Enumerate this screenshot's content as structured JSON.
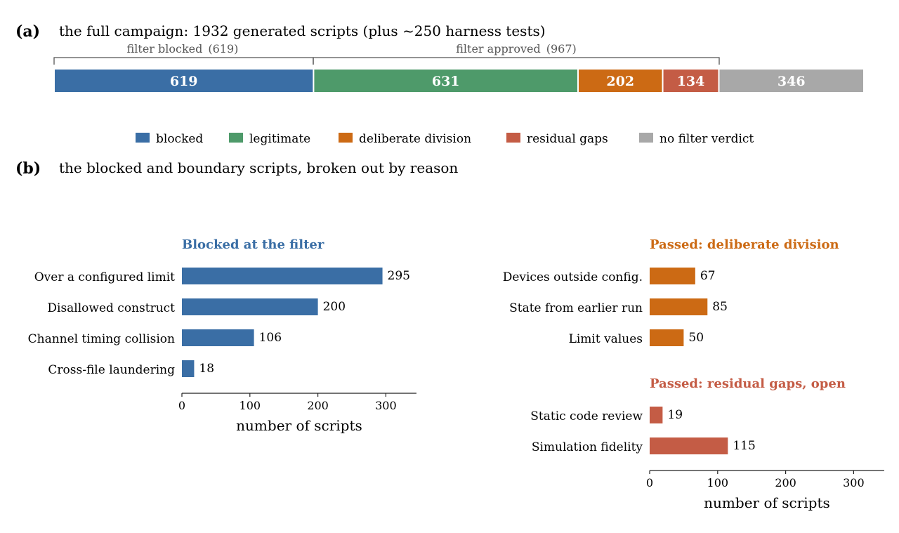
{
  "panel_a": {
    "letter": "(a)",
    "title": "the full campaign: 1932 generated scripts (plus ~250 harness tests)",
    "brackets": [
      {
        "label": "filter blocked",
        "count": "(619)"
      },
      {
        "label": "filter approved",
        "count": "(967)"
      }
    ],
    "legend": [
      {
        "label": "blocked",
        "color": "#3a6ea5"
      },
      {
        "label": "legitimate",
        "color": "#4e9a6a"
      },
      {
        "label": "deliberate division",
        "color": "#cc6a14"
      },
      {
        "label": "residual gaps",
        "color": "#c45c45"
      },
      {
        "label": "no filter verdict",
        "color": "#a8a8a8"
      }
    ]
  },
  "panel_b": {
    "letter": "(b)",
    "title": "the blocked and boundary scripts, broken out by reason"
  },
  "chart_data": [
    {
      "type": "bar",
      "orientation": "horizontal-stacked",
      "categories": [
        "blocked",
        "legitimate",
        "deliberate division",
        "residual gaps",
        "no filter verdict"
      ],
      "values": [
        619,
        631,
        202,
        134,
        346
      ],
      "labels": [
        "619",
        "631",
        "202",
        "134",
        "346"
      ],
      "colors": [
        "#3a6ea5",
        "#4e9a6a",
        "#cc6a14",
        "#c45c45",
        "#a8a8a8"
      ],
      "total": 1932
    },
    {
      "type": "bar",
      "orientation": "horizontal",
      "title": "Blocked at the filter",
      "title_color": "#3a6ea5",
      "bar_color": "#3a6ea5",
      "categories": [
        "Over a configured limit",
        "Disallowed construct",
        "Channel timing collision",
        "Cross-file laundering"
      ],
      "values": [
        295,
        200,
        106,
        18
      ],
      "labels": [
        "295",
        "200",
        "106",
        "18"
      ],
      "xlabel": "number of scripts",
      "xlim": [
        0,
        345
      ],
      "xticks": [
        0,
        100,
        200,
        300
      ],
      "xtick_labels": [
        "0",
        "100",
        "200",
        "300"
      ]
    },
    {
      "type": "bar",
      "orientation": "horizontal",
      "title": "Passed: deliberate division",
      "title_color": "#cc6a14",
      "bar_color": "#cc6a14",
      "categories": [
        "Devices outside config.",
        "State from earlier run",
        "Limit values"
      ],
      "values": [
        67,
        85,
        50
      ],
      "labels": [
        "67",
        "85",
        "50"
      ],
      "xlim": [
        0,
        345
      ]
    },
    {
      "type": "bar",
      "orientation": "horizontal",
      "title": "Passed: residual gaps, open",
      "title_color": "#c45c45",
      "bar_color": "#c45c45",
      "categories": [
        "Static code review",
        "Simulation fidelity"
      ],
      "values": [
        19,
        115
      ],
      "labels": [
        "19",
        "115"
      ],
      "xlabel": "number of scripts",
      "xlim": [
        0,
        345
      ],
      "xticks": [
        0,
        100,
        200,
        300
      ],
      "xtick_labels": [
        "0",
        "100",
        "200",
        "300"
      ]
    }
  ]
}
